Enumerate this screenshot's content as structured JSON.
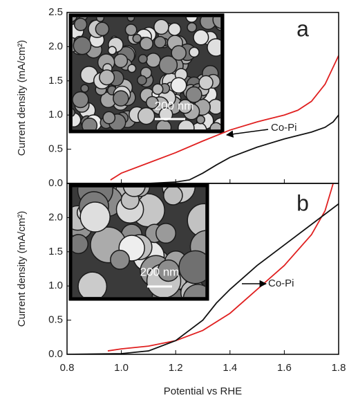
{
  "chart_data": [
    {
      "type": "line",
      "panel_label": "a",
      "annotation": "Co-Pi",
      "scale_bar": "200 nm",
      "ylabel": "Current density (mA/cm²)",
      "xlim": [
        0.8,
        1.8
      ],
      "ylim": [
        0,
        2.5
      ],
      "yticks": [
        0.0,
        0.5,
        1.0,
        1.5,
        2.0,
        2.5
      ],
      "yticklabels": [
        "0.0",
        "0.5",
        "1.0",
        "1.5",
        "2.0",
        "2.5"
      ],
      "series": [
        {
          "color": "#e02020",
          "x": [
            0.96,
            1.0,
            1.1,
            1.2,
            1.3,
            1.4,
            1.5,
            1.55,
            1.6,
            1.65,
            1.7,
            1.75,
            1.8
          ],
          "values": [
            0.05,
            0.15,
            0.3,
            0.45,
            0.62,
            0.78,
            0.9,
            0.95,
            1.0,
            1.07,
            1.2,
            1.45,
            1.87
          ]
        },
        {
          "color": "#111111",
          "x": [
            1.0,
            1.1,
            1.2,
            1.25,
            1.3,
            1.35,
            1.4,
            1.5,
            1.6,
            1.7,
            1.75,
            1.78,
            1.8
          ],
          "values": [
            0.0,
            0.0,
            0.02,
            0.05,
            0.15,
            0.27,
            0.38,
            0.53,
            0.65,
            0.75,
            0.82,
            0.9,
            1.0
          ]
        }
      ]
    },
    {
      "type": "line",
      "panel_label": "b",
      "annotation": "Co-Pi",
      "scale_bar": "200 nm",
      "ylabel": "Current density (mA/cm²)",
      "xlabel": "Potential vs RHE",
      "xlim": [
        0.8,
        1.8
      ],
      "ylim": [
        0,
        2.5
      ],
      "xticks": [
        0.8,
        1.0,
        1.2,
        1.4,
        1.6,
        1.8
      ],
      "xticklabels": [
        "0.8",
        "1.0",
        "1.2",
        "1.4",
        "1.6",
        "1.8"
      ],
      "yticks": [
        0.0,
        0.5,
        1.0,
        1.5,
        2.0
      ],
      "yticklabels": [
        "0.0",
        "0.5",
        "1.0",
        "1.5",
        "2.0"
      ],
      "series": [
        {
          "color": "#e02020",
          "x": [
            0.95,
            1.0,
            1.1,
            1.2,
            1.3,
            1.4,
            1.5,
            1.6,
            1.7,
            1.75,
            1.78
          ],
          "values": [
            0.05,
            0.08,
            0.12,
            0.2,
            0.35,
            0.6,
            0.95,
            1.3,
            1.75,
            2.1,
            2.5
          ]
        },
        {
          "color": "#111111",
          "x": [
            0.8,
            1.0,
            1.1,
            1.2,
            1.3,
            1.35,
            1.4,
            1.5,
            1.6,
            1.7,
            1.8
          ],
          "values": [
            0.0,
            0.01,
            0.05,
            0.2,
            0.5,
            0.75,
            0.95,
            1.3,
            1.6,
            1.9,
            2.2
          ]
        }
      ]
    }
  ]
}
